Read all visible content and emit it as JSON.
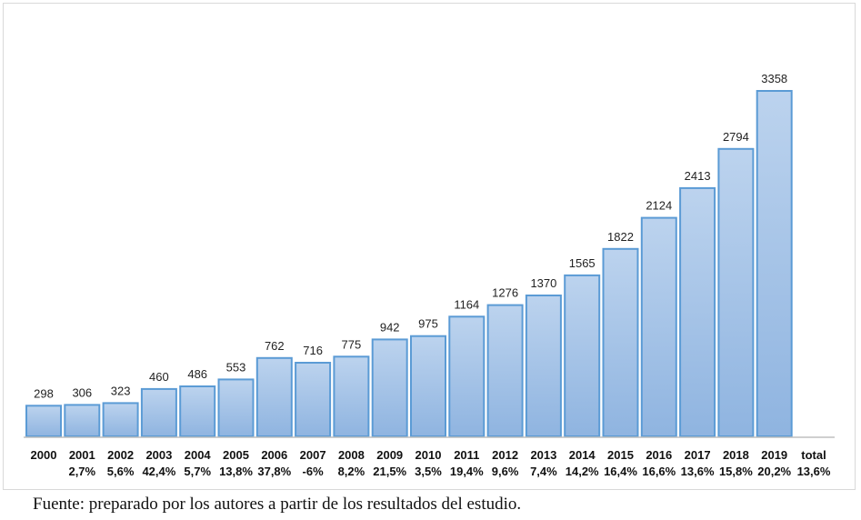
{
  "chart_data": {
    "type": "bar",
    "categories": [
      "2000",
      "2001",
      "2002",
      "2003",
      "2004",
      "2005",
      "2006",
      "2007",
      "2008",
      "2009",
      "2010",
      "2011",
      "2012",
      "2013",
      "2014",
      "2015",
      "2016",
      "2017",
      "2018",
      "2019"
    ],
    "values": [
      298,
      306,
      323,
      460,
      486,
      553,
      762,
      716,
      775,
      942,
      975,
      1164,
      1276,
      1370,
      1565,
      1822,
      2124,
      2413,
      2794,
      3358
    ],
    "growth_labels": [
      "",
      "2,7%",
      "5,6%",
      "42,4%",
      "5,7%",
      "13,8%",
      "37,8%",
      "-6%",
      "8,2%",
      "21,5%",
      "3,5%",
      "19,4%",
      "9,6%",
      "7,4%",
      "14,2%",
      "16,4%",
      "16,6%",
      "13,6%",
      "15,8%",
      "20,2%"
    ],
    "total_label": "total",
    "total_growth": "13,6%",
    "ylim": [
      0,
      3358
    ],
    "grid": false,
    "colors": {
      "bar_top": "#bcd3ee",
      "bar_bottom": "#8fb4e0",
      "bar_border": "#5b9bd5",
      "axis": "#bfbfbf"
    }
  },
  "caption": "Fuente: preparado por los autores a partir de los resultados del estudio."
}
